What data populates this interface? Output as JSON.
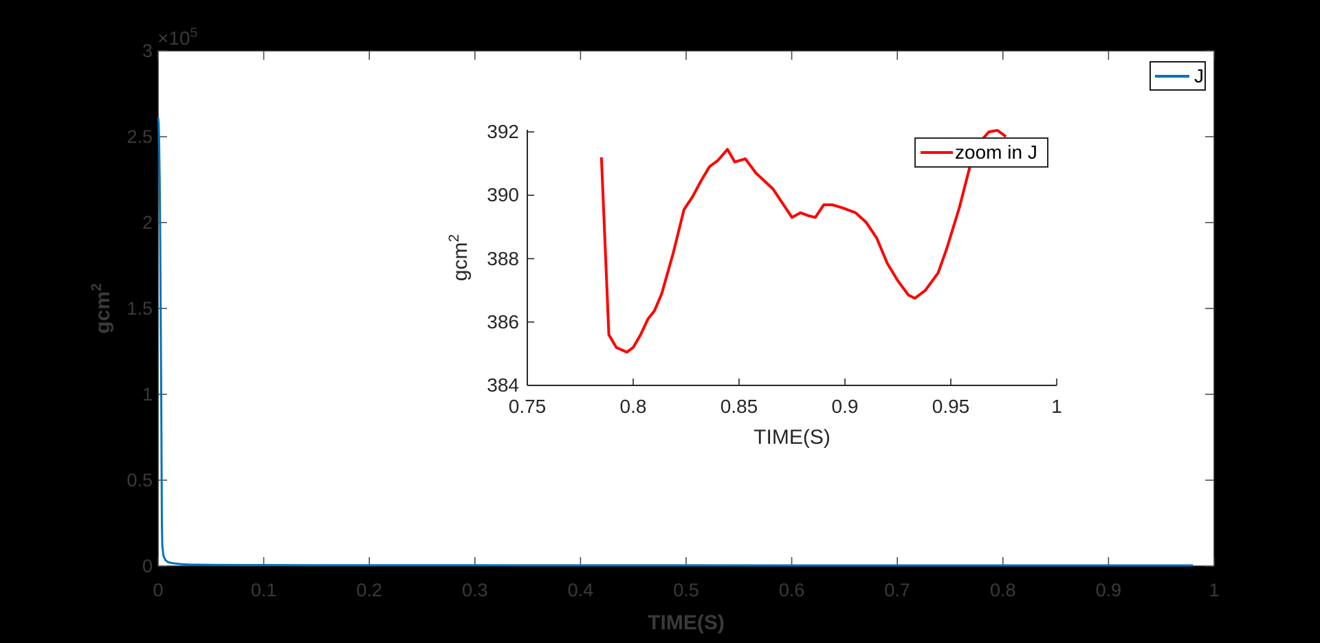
{
  "figure": {
    "background_color": "#000000",
    "axes_background_color": "#ffffff",
    "main_text_color": "#3a3a3a",
    "inset_text_color": "#262626"
  },
  "chart_data": [
    {
      "id": "main",
      "type": "line",
      "xlabel": "TIME(S)",
      "ylabel": "gcm",
      "ylabel_sup": "2",
      "y_multiplier": "×10",
      "y_multiplier_sup": "5",
      "xlim": [
        0,
        1
      ],
      "ylim": [
        0,
        300000
      ],
      "grid": false,
      "x_ticks": {
        "values": [
          0,
          0.1,
          0.2,
          0.3,
          0.4,
          0.5,
          0.6,
          0.7,
          0.8,
          0.9,
          1
        ],
        "labels": [
          "0",
          "0.1",
          "0.2",
          "0.3",
          "0.4",
          "0.5",
          "0.6",
          "0.7",
          "0.8",
          "0.9",
          "1"
        ]
      },
      "y_ticks": {
        "values": [
          0,
          50000,
          100000,
          150000,
          200000,
          250000,
          300000
        ],
        "labels": [
          "0",
          "0.5",
          "1",
          "1.5",
          "2",
          "2.5",
          "3"
        ]
      },
      "legend": {
        "position": "top-right",
        "entries": [
          {
            "label": "J",
            "color": "#0072BD"
          }
        ]
      },
      "series": [
        {
          "name": "J",
          "color": "#0072BD",
          "line_width": 3,
          "points": [
            [
              0,
              261000
            ],
            [
              0.0005,
              258000
            ],
            [
              0.001,
              246000
            ],
            [
              0.0015,
              225000
            ],
            [
              0.002,
              188000
            ],
            [
              0.0025,
              143000
            ],
            [
              0.003,
              95000
            ],
            [
              0.0033,
              52000
            ],
            [
              0.0036,
              24000
            ],
            [
              0.004,
              12000
            ],
            [
              0.005,
              6000
            ],
            [
              0.007,
              3400
            ],
            [
              0.009,
              2400
            ],
            [
              0.012,
              1900
            ],
            [
              0.016,
              1500
            ],
            [
              0.022,
              1100
            ],
            [
              0.03,
              850
            ],
            [
              0.05,
              680
            ],
            [
              0.08,
              580
            ],
            [
              0.15,
              520
            ],
            [
              0.3,
              470
            ],
            [
              0.5,
              440
            ],
            [
              0.7,
              415
            ],
            [
              0.85,
              398
            ],
            [
              0.98,
              390
            ]
          ]
        }
      ]
    },
    {
      "id": "inset",
      "type": "line",
      "xlabel": "TIME(S)",
      "ylabel": "gcm",
      "ylabel_sup": "2",
      "xlim": [
        0.75,
        1
      ],
      "ylim": [
        384,
        392
      ],
      "grid": false,
      "x_ticks": {
        "values": [
          0.75,
          0.8,
          0.85,
          0.9,
          0.95,
          1
        ],
        "labels": [
          "0.75",
          "0.8",
          "0.85",
          "0.9",
          "0.95",
          "1"
        ]
      },
      "y_ticks": {
        "values": [
          384,
          386,
          388,
          390,
          392
        ],
        "labels": [
          "384",
          "386",
          "388",
          "390",
          "392"
        ]
      },
      "legend": {
        "position": "top-right",
        "entries": [
          {
            "label": "zoom in J",
            "color": "#FF0000"
          }
        ]
      },
      "series": [
        {
          "name": "zoom in J",
          "color": "#FF0000",
          "line_width": 4,
          "points": [
            [
              0.785,
              391.2
            ],
            [
              0.7885,
              385.6
            ],
            [
              0.792,
              385.2
            ],
            [
              0.797,
              385.05
            ],
            [
              0.8,
              385.2
            ],
            [
              0.8035,
              385.6
            ],
            [
              0.807,
              386.1
            ],
            [
              0.81,
              386.35
            ],
            [
              0.8135,
              386.9
            ],
            [
              0.819,
              388.2
            ],
            [
              0.824,
              389.55
            ],
            [
              0.828,
              389.95
            ],
            [
              0.832,
              390.45
            ],
            [
              0.836,
              390.9
            ],
            [
              0.84,
              391.1
            ],
            [
              0.8445,
              391.45
            ],
            [
              0.848,
              391.05
            ],
            [
              0.853,
              391.15
            ],
            [
              0.858,
              390.7
            ],
            [
              0.862,
              390.45
            ],
            [
              0.866,
              390.2
            ],
            [
              0.871,
              389.7
            ],
            [
              0.875,
              389.3
            ],
            [
              0.879,
              389.45
            ],
            [
              0.883,
              389.35
            ],
            [
              0.886,
              389.3
            ],
            [
              0.89,
              389.7
            ],
            [
              0.894,
              389.7
            ],
            [
              0.899,
              389.6
            ],
            [
              0.905,
              389.45
            ],
            [
              0.91,
              389.15
            ],
            [
              0.915,
              388.65
            ],
            [
              0.92,
              387.85
            ],
            [
              0.925,
              387.3
            ],
            [
              0.93,
              386.85
            ],
            [
              0.933,
              386.75
            ],
            [
              0.938,
              387.0
            ],
            [
              0.944,
              387.55
            ],
            [
              0.948,
              388.3
            ],
            [
              0.954,
              389.6
            ],
            [
              0.959,
              390.9
            ],
            [
              0.964,
              391.7
            ],
            [
              0.968,
              392.0
            ],
            [
              0.972,
              392.05
            ],
            [
              0.976,
              391.85
            ]
          ]
        }
      ]
    }
  ]
}
